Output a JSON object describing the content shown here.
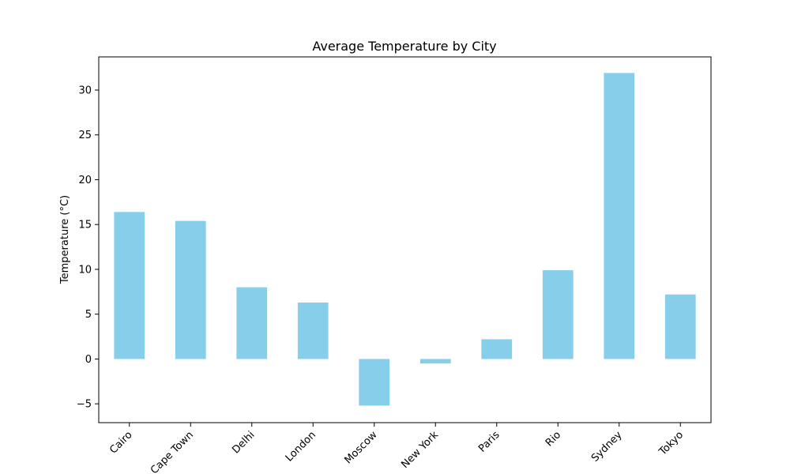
{
  "chart_data": {
    "type": "bar",
    "title": "Average Temperature by City",
    "xlabel": "",
    "ylabel": "Temperature (°C)",
    "categories": [
      "Cairo",
      "Cape Town",
      "Delhi",
      "London",
      "Moscow",
      "New York",
      "Paris",
      "Rio",
      "Sydney",
      "Tokyo"
    ],
    "values": [
      16.4,
      15.4,
      8.0,
      6.3,
      -5.2,
      -0.5,
      2.2,
      9.9,
      31.9,
      7.2
    ],
    "ylim": [
      -7.1,
      33.7
    ],
    "yticks": [
      -5,
      0,
      5,
      10,
      15,
      20,
      25,
      30
    ],
    "ytick_labels": [
      "−5",
      "0",
      "5",
      "10",
      "15",
      "20",
      "25",
      "30"
    ],
    "bar_color": "#87ceeb",
    "grid": false,
    "legend": "none"
  }
}
